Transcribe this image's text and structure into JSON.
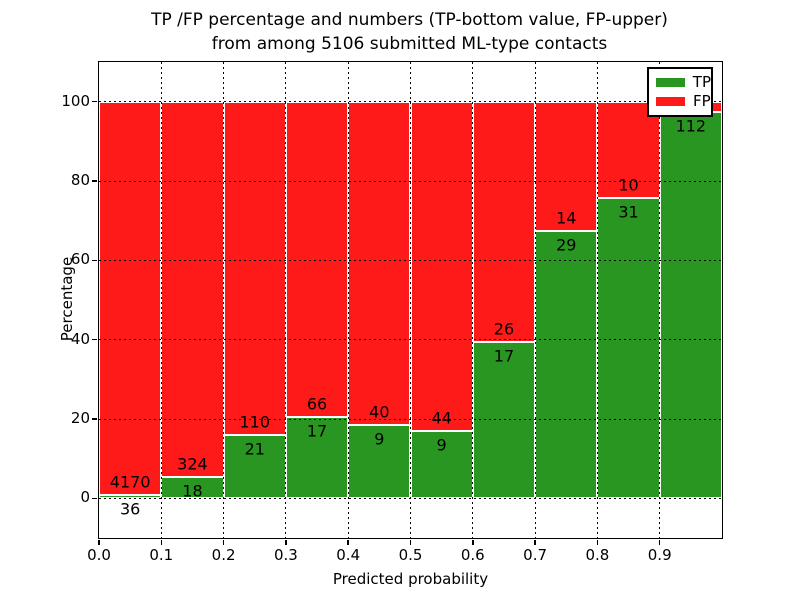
{
  "title": {
    "line1": "TP /FP percentage and numbers (TP-bottom value, FP-upper)",
    "line2": "from among 5106 submitted ML-type contacts"
  },
  "chart_data": {
    "type": "bar",
    "stacked": true,
    "title": "TP /FP percentage and numbers (TP-bottom value, FP-upper) from among 5106 submitted ML-type contacts",
    "xlabel": "Predicted probability",
    "ylabel": "Percentage",
    "xlim": [
      0.0,
      1.0
    ],
    "ylim": [
      -10,
      110
    ],
    "grid": "dotted",
    "total_contacts": 5106,
    "x_tick_labels": [
      "0.0",
      "0.1",
      "0.2",
      "0.3",
      "0.4",
      "0.5",
      "0.6",
      "0.7",
      "0.8",
      "0.9"
    ],
    "y_tick_values": [
      0,
      20,
      40,
      60,
      80,
      100
    ],
    "bin_edges": [
      0.0,
      0.1,
      0.2,
      0.3,
      0.4,
      0.5,
      0.6,
      0.7,
      0.8,
      0.9,
      1.0
    ],
    "series": [
      {
        "name": "TP",
        "color": "#2a9622"
      },
      {
        "name": "FP",
        "color": "#ff1a1a"
      }
    ],
    "bins": [
      {
        "tp": 36,
        "fp": 4170,
        "tp_label": "36",
        "fp_label": "4170"
      },
      {
        "tp": 18,
        "fp": 324,
        "tp_label": "18",
        "fp_label": "324"
      },
      {
        "tp": 21,
        "fp": 110,
        "tp_label": "21",
        "fp_label": "110"
      },
      {
        "tp": 17,
        "fp": 66,
        "tp_label": "17",
        "fp_label": "66"
      },
      {
        "tp": 9,
        "fp": 40,
        "tp_label": "9",
        "fp_label": "40"
      },
      {
        "tp": 9,
        "fp": 44,
        "tp_label": "9",
        "fp_label": "44"
      },
      {
        "tp": 17,
        "fp": 26,
        "tp_label": "17",
        "fp_label": "26"
      },
      {
        "tp": 29,
        "fp": 14,
        "tp_label": "29",
        "fp_label": "14"
      },
      {
        "tp": 31,
        "fp": 10,
        "tp_label": "31",
        "fp_label": "10"
      },
      {
        "tp": 112,
        "fp": 3,
        "tp_label": "112",
        "fp_label": ""
      }
    ],
    "legend": {
      "position": "upper right",
      "entries": [
        {
          "label": "TP",
          "color": "#2a9622"
        },
        {
          "label": "FP",
          "color": "#ff1a1a"
        }
      ]
    }
  }
}
